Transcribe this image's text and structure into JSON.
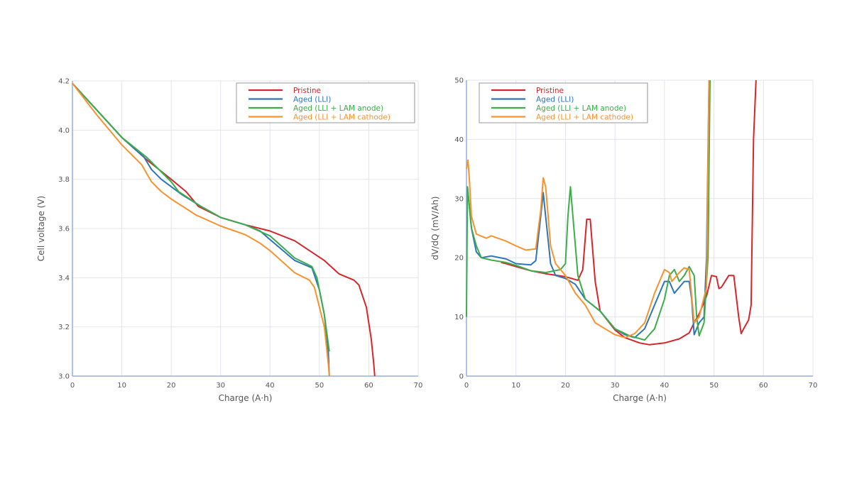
{
  "colors": {
    "Pristine": "#d7262b",
    "Aged (LLI)": "#2e75b6",
    "Aged (LLI + LAM anode)": "#3cad4a",
    "Aged (LLI + LAM cathode)": "#f7932e",
    "axis": "#94aee3",
    "grid": "#e2e4ec"
  },
  "chart_data": [
    {
      "type": "line",
      "xlabel": "Charge (A·h)",
      "ylabel": "Cell voltage (V)",
      "xlim": [
        0,
        70
      ],
      "ylim": [
        3.0,
        4.2
      ],
      "xticks": [
        0,
        10,
        20,
        30,
        40,
        50,
        60,
        70
      ],
      "yticks": [
        "3.0",
        "3.2",
        "3.4",
        "3.6",
        "3.8",
        "4.0",
        "4.2"
      ],
      "grid": true,
      "legend": "top-right",
      "series": [
        {
          "name": "Pristine",
          "points": [
            [
              0,
              4.19
            ],
            [
              5,
              4.08
            ],
            [
              10,
              3.97
            ],
            [
              15,
              3.88
            ],
            [
              20,
              3.8
            ],
            [
              23,
              3.75
            ],
            [
              25.5,
              3.69
            ],
            [
              30,
              3.645
            ],
            [
              35,
              3.615
            ],
            [
              40,
              3.59
            ],
            [
              45,
              3.55
            ],
            [
              48,
              3.51
            ],
            [
              51,
              3.47
            ],
            [
              54,
              3.415
            ],
            [
              57,
              3.39
            ],
            [
              58,
              3.37
            ],
            [
              59.5,
              3.28
            ],
            [
              60.5,
              3.15
            ],
            [
              61,
              3.05
            ],
            [
              61.2,
              3.0
            ]
          ]
        },
        {
          "name": "Aged (LLI)",
          "points": [
            [
              0,
              4.19
            ],
            [
              5,
              4.08
            ],
            [
              10,
              3.97
            ],
            [
              14.5,
              3.89
            ],
            [
              16,
              3.84
            ],
            [
              18,
              3.8
            ],
            [
              22,
              3.74
            ],
            [
              26,
              3.69
            ],
            [
              30,
              3.645
            ],
            [
              35,
              3.615
            ],
            [
              38,
              3.59
            ],
            [
              40,
              3.555
            ],
            [
              45,
              3.47
            ],
            [
              48.5,
              3.44
            ],
            [
              50,
              3.35
            ],
            [
              51,
              3.25
            ],
            [
              51.8,
              3.1
            ],
            [
              52,
              3.0
            ]
          ]
        },
        {
          "name": "Aged (LLI + LAM anode)",
          "points": [
            [
              0,
              4.19
            ],
            [
              5,
              4.08
            ],
            [
              10,
              3.97
            ],
            [
              15,
              3.89
            ],
            [
              20,
              3.79
            ],
            [
              21.5,
              3.75
            ],
            [
              26,
              3.69
            ],
            [
              30,
              3.645
            ],
            [
              35,
              3.615
            ],
            [
              40,
              3.57
            ],
            [
              45,
              3.48
            ],
            [
              48.5,
              3.445
            ],
            [
              49.5,
              3.4
            ],
            [
              51,
              3.25
            ],
            [
              52,
              3.1
            ]
          ]
        },
        {
          "name": "Aged (LLI + LAM cathode)",
          "points": [
            [
              0,
              4.19
            ],
            [
              5,
              4.06
            ],
            [
              10,
              3.94
            ],
            [
              14,
              3.86
            ],
            [
              16,
              3.79
            ],
            [
              18,
              3.75
            ],
            [
              20,
              3.72
            ],
            [
              25,
              3.655
            ],
            [
              30,
              3.61
            ],
            [
              35,
              3.575
            ],
            [
              38,
              3.54
            ],
            [
              40,
              3.51
            ],
            [
              45,
              3.42
            ],
            [
              48,
              3.39
            ],
            [
              49,
              3.36
            ],
            [
              50,
              3.28
            ],
            [
              51,
              3.2
            ],
            [
              51.8,
              3.05
            ],
            [
              52,
              3.0
            ]
          ]
        }
      ]
    },
    {
      "type": "line",
      "xlabel": "Charge (A·h)",
      "ylabel": "dV/dQ (mV/Ah)",
      "xlim": [
        0,
        70
      ],
      "ylim": [
        0,
        50
      ],
      "xticks": [
        0,
        10,
        20,
        30,
        40,
        50,
        60,
        70
      ],
      "yticks": [
        "0",
        "10",
        "20",
        "30",
        "40",
        "50"
      ],
      "grid": true,
      "legend": "top-left",
      "series": [
        {
          "name": "Pristine",
          "points": [
            [
              7,
              19.2
            ],
            [
              8,
              19
            ],
            [
              10,
              18.5
            ],
            [
              13,
              17.8
            ],
            [
              16,
              17.3
            ],
            [
              20,
              16.8
            ],
            [
              22.5,
              16.2
            ],
            [
              23.5,
              18
            ],
            [
              24.3,
              26.5
            ],
            [
              25,
              26.5
            ],
            [
              26,
              16
            ],
            [
              27,
              11
            ],
            [
              30,
              7.8
            ],
            [
              32,
              6.5
            ],
            [
              35,
              5.6
            ],
            [
              37,
              5.3
            ],
            [
              40,
              5.6
            ],
            [
              43,
              6.3
            ],
            [
              45,
              7.3
            ],
            [
              46,
              9
            ],
            [
              47,
              10.5
            ],
            [
              48.5,
              13.5
            ],
            [
              49.5,
              17
            ],
            [
              50.5,
              16.8
            ],
            [
              51,
              14.8
            ],
            [
              51.5,
              15
            ],
            [
              53,
              17
            ],
            [
              54,
              17
            ],
            [
              55,
              10
            ],
            [
              55.5,
              7.2
            ],
            [
              56,
              8
            ],
            [
              57,
              9.5
            ],
            [
              57.5,
              12
            ],
            [
              58,
              40
            ],
            [
              58.5,
              50
            ]
          ]
        },
        {
          "name": "Aged (LLI)",
          "points": [
            [
              0.2,
              32
            ],
            [
              1,
              25
            ],
            [
              2,
              21
            ],
            [
              3,
              20
            ],
            [
              5,
              20.3
            ],
            [
              8,
              19.8
            ],
            [
              10,
              19
            ],
            [
              13,
              18.8
            ],
            [
              14,
              19.5
            ],
            [
              15,
              27
            ],
            [
              15.5,
              31
            ],
            [
              16,
              27
            ],
            [
              17,
              19
            ],
            [
              18,
              17
            ],
            [
              20,
              16.5
            ],
            [
              22,
              15.5
            ],
            [
              24,
              13
            ],
            [
              27,
              11
            ],
            [
              30,
              8
            ],
            [
              32,
              7
            ],
            [
              34,
              6.5
            ],
            [
              36,
              8
            ],
            [
              38,
              12
            ],
            [
              40,
              16
            ],
            [
              41,
              16
            ],
            [
              42,
              14
            ],
            [
              44,
              16
            ],
            [
              45,
              16
            ],
            [
              45.5,
              13
            ],
            [
              46,
              7
            ],
            [
              47,
              9
            ],
            [
              48,
              10
            ],
            [
              48.5,
              20
            ],
            [
              49,
              50
            ]
          ]
        },
        {
          "name": "Aged (LLI + LAM anode)",
          "points": [
            [
              0,
              10
            ],
            [
              0.2,
              32
            ],
            [
              1,
              25
            ],
            [
              2,
              22
            ],
            [
              3,
              20
            ],
            [
              5,
              19.6
            ],
            [
              8,
              19.2
            ],
            [
              10,
              18.7
            ],
            [
              13,
              17.8
            ],
            [
              16,
              17.5
            ],
            [
              19,
              18
            ],
            [
              20,
              19
            ],
            [
              20.5,
              27
            ],
            [
              21,
              32
            ],
            [
              21.5,
              27
            ],
            [
              22.5,
              17
            ],
            [
              24,
              13
            ],
            [
              27,
              11
            ],
            [
              30,
              8
            ],
            [
              33,
              6.8
            ],
            [
              36,
              6.1
            ],
            [
              38,
              8
            ],
            [
              40,
              13
            ],
            [
              41,
              17
            ],
            [
              42,
              18
            ],
            [
              43,
              16
            ],
            [
              44,
              17
            ],
            [
              45,
              18.5
            ],
            [
              46,
              17
            ],
            [
              46.5,
              10
            ],
            [
              47,
              6.8
            ],
            [
              48,
              9
            ],
            [
              48.8,
              20
            ],
            [
              49.2,
              50
            ]
          ]
        },
        {
          "name": "Aged (LLI + LAM cathode)",
          "points": [
            [
              0,
              35
            ],
            [
              0.3,
              36.5
            ],
            [
              0.6,
              33
            ],
            [
              1,
              27
            ],
            [
              2,
              24
            ],
            [
              4,
              23.3
            ],
            [
              5,
              23.7
            ],
            [
              8,
              22.8
            ],
            [
              10,
              22
            ],
            [
              12,
              21.3
            ],
            [
              14,
              21.5
            ],
            [
              15,
              28
            ],
            [
              15.5,
              33.5
            ],
            [
              16,
              32
            ],
            [
              17,
              22
            ],
            [
              18,
              19
            ],
            [
              20,
              17
            ],
            [
              22,
              14
            ],
            [
              24,
              12
            ],
            [
              26,
              9
            ],
            [
              28,
              8
            ],
            [
              30,
              7
            ],
            [
              32,
              6.5
            ],
            [
              34,
              7.2
            ],
            [
              36,
              9
            ],
            [
              38,
              14
            ],
            [
              40,
              18
            ],
            [
              41,
              17.5
            ],
            [
              41.5,
              16
            ],
            [
              43,
              17.5
            ],
            [
              44,
              18.3
            ],
            [
              45,
              18
            ],
            [
              46,
              9
            ],
            [
              47,
              10
            ],
            [
              48.5,
              15
            ],
            [
              49,
              50
            ]
          ]
        }
      ]
    }
  ]
}
